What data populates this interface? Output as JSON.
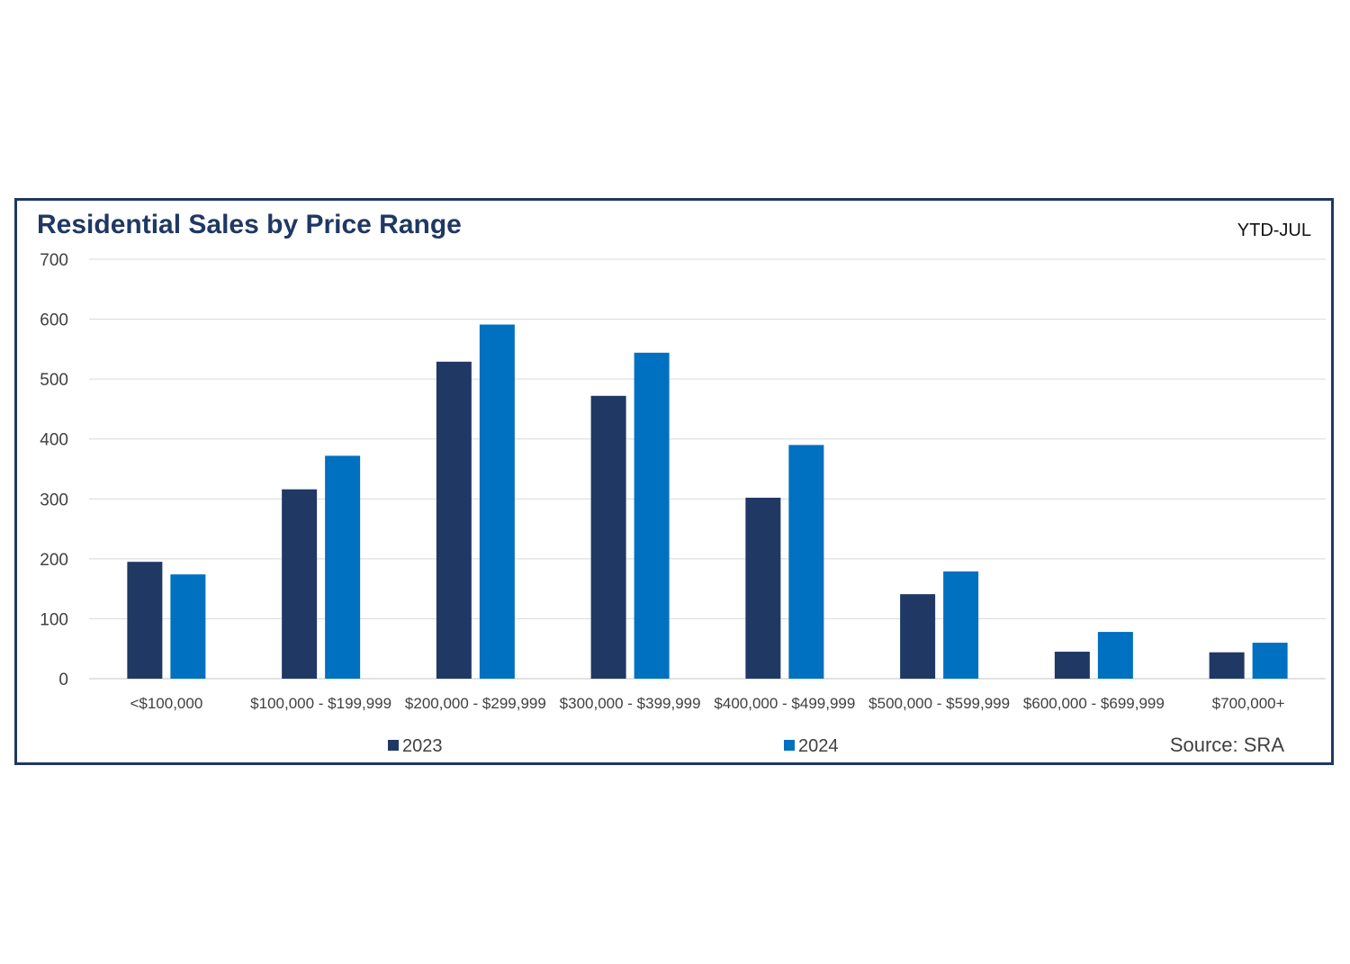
{
  "chart_data": {
    "type": "bar",
    "title": "Residential Sales by Price Range",
    "period_label": "YTD-JUL",
    "source": "Source: SRA",
    "xlabel": "",
    "ylabel": "",
    "ylim": [
      0,
      700
    ],
    "yticks": [
      0,
      100,
      200,
      300,
      400,
      500,
      600,
      700
    ],
    "grid": true,
    "legend_position": "bottom",
    "categories": [
      "<$100,000",
      "$100,000 - $199,999",
      "$200,000 - $299,999",
      "$300,000 - $399,999",
      "$400,000 - $499,999",
      "$500,000 - $599,999",
      "$600,000 - $699,999",
      "$700,000+"
    ],
    "series": [
      {
        "name": "2023",
        "color": "#203864",
        "values": [
          195,
          316,
          529,
          472,
          302,
          141,
          45,
          44
        ]
      },
      {
        "name": "2024",
        "color": "#0070c0",
        "values": [
          174,
          372,
          591,
          544,
          390,
          179,
          78,
          60
        ]
      }
    ],
    "colors": {
      "frame": "#1f3864",
      "title": "#1f3864",
      "grid": "#d9d9d9"
    }
  }
}
